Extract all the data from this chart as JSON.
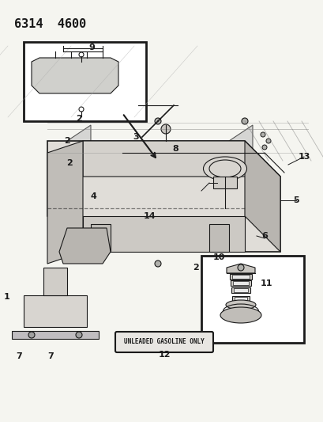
{
  "title": "6314  4600",
  "background_color": "#f5f5f0",
  "line_color": "#1a1a1a",
  "label_color": "#1a1a1a",
  "fig_width": 4.1,
  "fig_height": 5.33,
  "dpi": 100,
  "header": "6314  4600",
  "badge_text": "UNLEADED GASOLINE ONLY",
  "part_numbers": [
    "1",
    "2",
    "3",
    "4",
    "5",
    "6",
    "7",
    "8",
    "9",
    "10",
    "11",
    "12",
    "13",
    "14"
  ]
}
